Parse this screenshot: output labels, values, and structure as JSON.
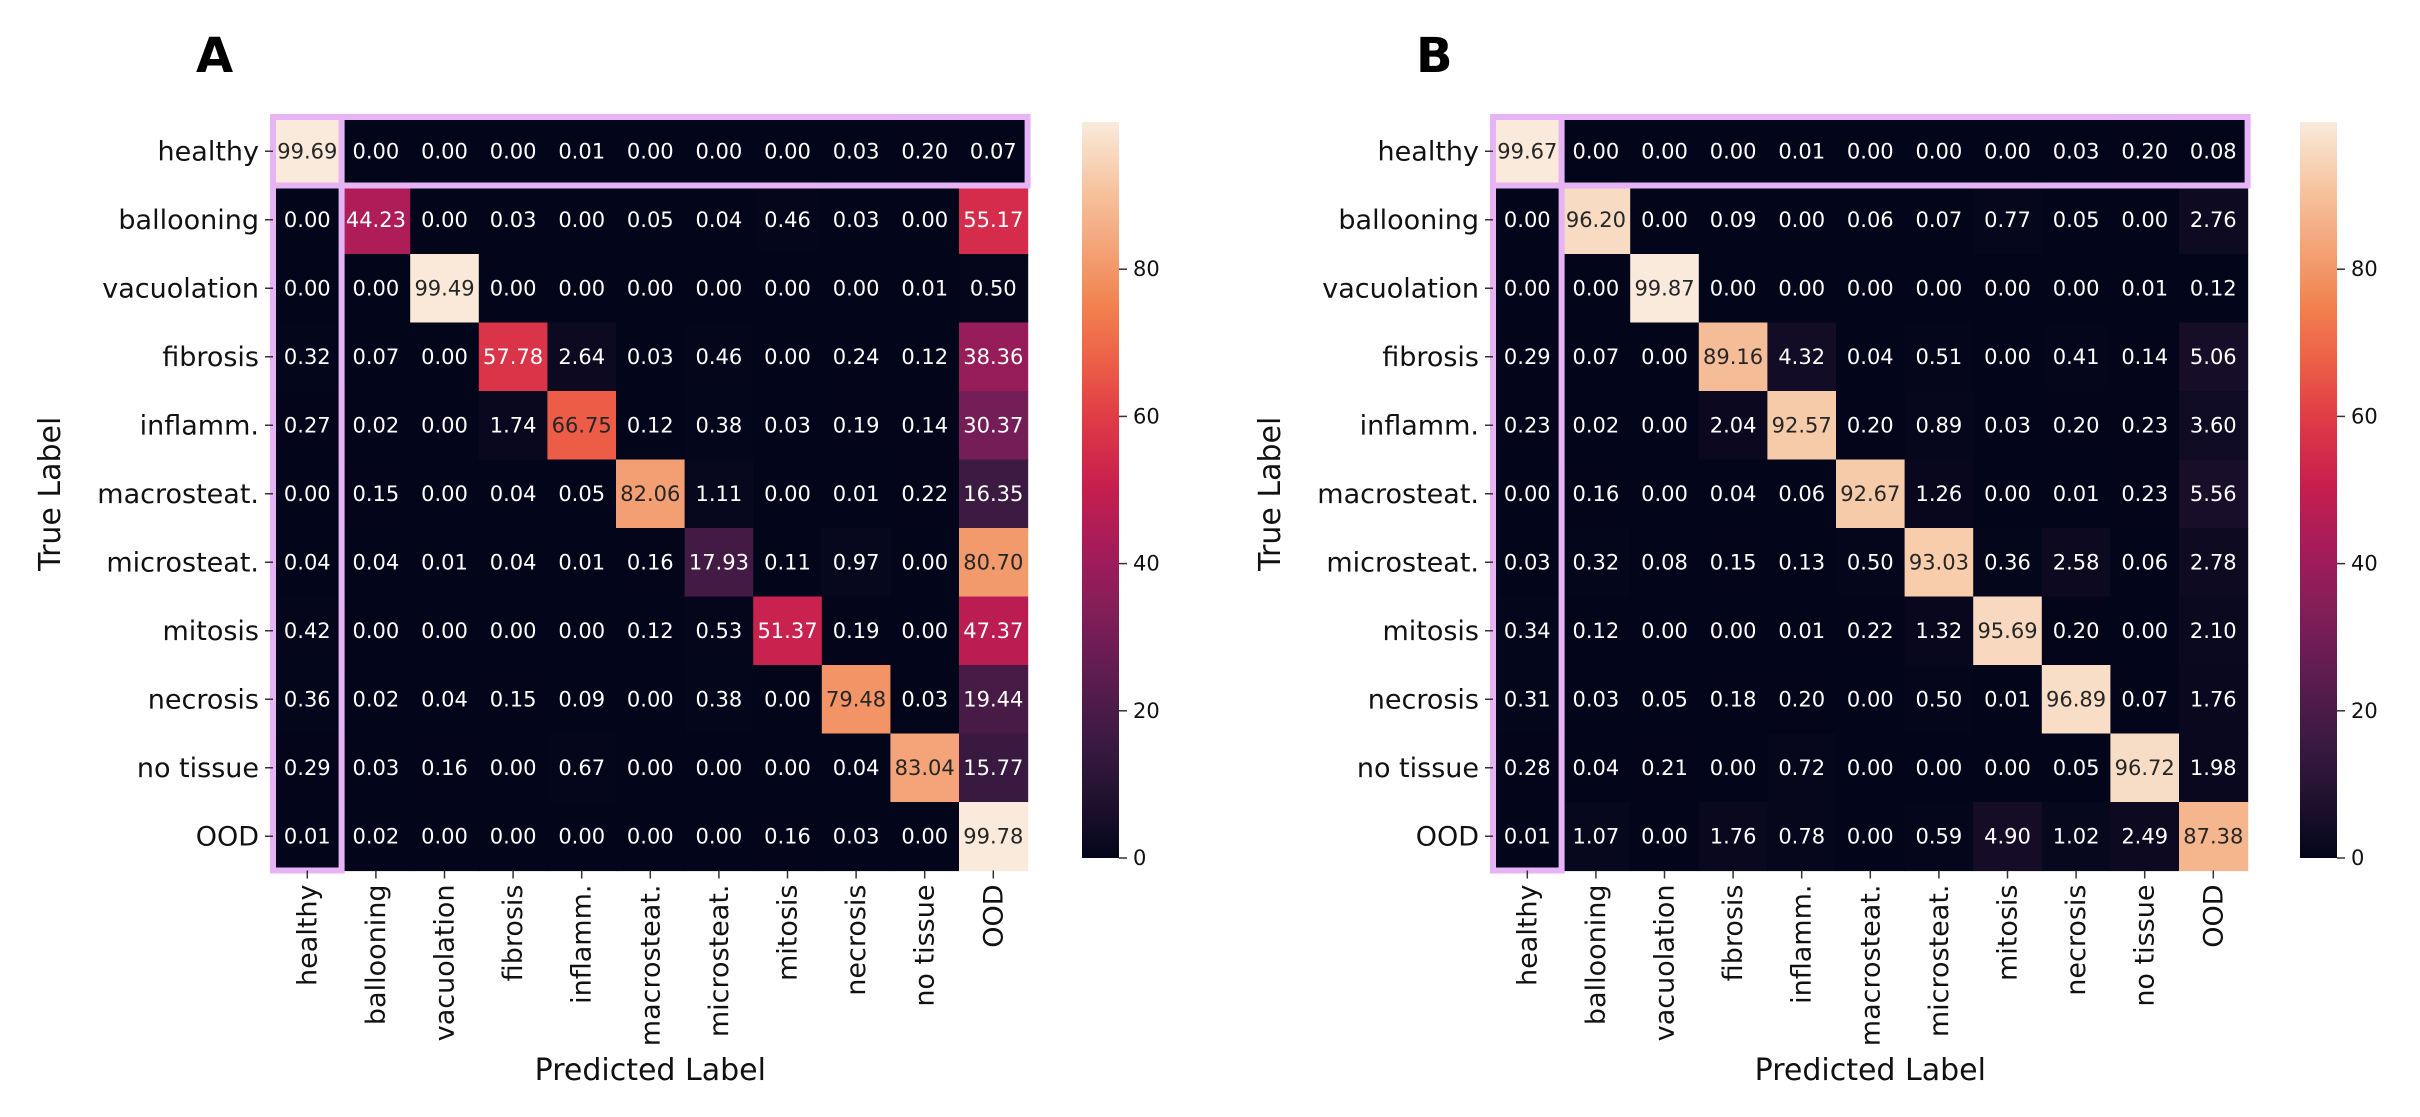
{
  "chart_data": [
    {
      "type": "heatmap",
      "panel_label": "A",
      "title": "",
      "xlabel": "Predicted Label",
      "ylabel": "True Label",
      "categories": [
        "healthy",
        "ballooning",
        "vacuolation",
        "fibrosis",
        "inflamm.",
        "macrosteat.",
        "microsteat.",
        "mitosis",
        "necrosis",
        "no tissue",
        "OOD"
      ],
      "values": [
        [
          "99.69",
          "0.00",
          "0.00",
          "0.00",
          "0.01",
          "0.00",
          "0.00",
          "0.00",
          "0.03",
          "0.20",
          "0.07"
        ],
        [
          "0.00",
          "44.23",
          "0.00",
          "0.03",
          "0.00",
          "0.05",
          "0.04",
          "0.46",
          "0.03",
          "0.00",
          "55.17"
        ],
        [
          "0.00",
          "0.00",
          "99.49",
          "0.00",
          "0.00",
          "0.00",
          "0.00",
          "0.00",
          "0.00",
          "0.01",
          "0.50"
        ],
        [
          "0.32",
          "0.07",
          "0.00",
          "57.78",
          "2.64",
          "0.03",
          "0.46",
          "0.00",
          "0.24",
          "0.12",
          "38.36"
        ],
        [
          "0.27",
          "0.02",
          "0.00",
          "1.74",
          "66.75",
          "0.12",
          "0.38",
          "0.03",
          "0.19",
          "0.14",
          "30.37"
        ],
        [
          "0.00",
          "0.15",
          "0.00",
          "0.04",
          "0.05",
          "82.06",
          "1.11",
          "0.00",
          "0.01",
          "0.22",
          "16.35"
        ],
        [
          "0.04",
          "0.04",
          "0.01",
          "0.04",
          "0.01",
          "0.16",
          "17.93",
          "0.11",
          "0.97",
          "0.00",
          "80.70"
        ],
        [
          "0.42",
          "0.00",
          "0.00",
          "0.00",
          "0.00",
          "0.12",
          "0.53",
          "51.37",
          "0.19",
          "0.00",
          "47.37"
        ],
        [
          "0.36",
          "0.02",
          "0.04",
          "0.15",
          "0.09",
          "0.00",
          "0.38",
          "0.00",
          "79.48",
          "0.03",
          "19.44"
        ],
        [
          "0.29",
          "0.03",
          "0.16",
          "0.00",
          "0.67",
          "0.00",
          "0.00",
          "0.00",
          "0.04",
          "83.04",
          "15.77"
        ],
        [
          "0.01",
          "0.02",
          "0.00",
          "0.00",
          "0.00",
          "0.00",
          "0.00",
          "0.16",
          "0.03",
          "0.00",
          "99.78"
        ]
      ],
      "colorbar": {
        "range": [
          0,
          100
        ],
        "ticks": [
          "0",
          "20",
          "40",
          "60",
          "80"
        ]
      }
    },
    {
      "type": "heatmap",
      "panel_label": "B",
      "title": "",
      "xlabel": "Predicted Label",
      "ylabel": "True Label",
      "categories": [
        "healthy",
        "ballooning",
        "vacuolation",
        "fibrosis",
        "inflamm.",
        "macrosteat.",
        "microsteat.",
        "mitosis",
        "necrosis",
        "no tissue",
        "OOD"
      ],
      "values": [
        [
          "99.67",
          "0.00",
          "0.00",
          "0.00",
          "0.01",
          "0.00",
          "0.00",
          "0.00",
          "0.03",
          "0.20",
          "0.08"
        ],
        [
          "0.00",
          "96.20",
          "0.00",
          "0.09",
          "0.00",
          "0.06",
          "0.07",
          "0.77",
          "0.05",
          "0.00",
          "2.76"
        ],
        [
          "0.00",
          "0.00",
          "99.87",
          "0.00",
          "0.00",
          "0.00",
          "0.00",
          "0.00",
          "0.00",
          "0.01",
          "0.12"
        ],
        [
          "0.29",
          "0.07",
          "0.00",
          "89.16",
          "4.32",
          "0.04",
          "0.51",
          "0.00",
          "0.41",
          "0.14",
          "5.06"
        ],
        [
          "0.23",
          "0.02",
          "0.00",
          "2.04",
          "92.57",
          "0.20",
          "0.89",
          "0.03",
          "0.20",
          "0.23",
          "3.60"
        ],
        [
          "0.00",
          "0.16",
          "0.00",
          "0.04",
          "0.06",
          "92.67",
          "1.26",
          "0.00",
          "0.01",
          "0.23",
          "5.56"
        ],
        [
          "0.03",
          "0.32",
          "0.08",
          "0.15",
          "0.13",
          "0.50",
          "93.03",
          "0.36",
          "2.58",
          "0.06",
          "2.78"
        ],
        [
          "0.34",
          "0.12",
          "0.00",
          "0.00",
          "0.01",
          "0.22",
          "1.32",
          "95.69",
          "0.20",
          "0.00",
          "2.10"
        ],
        [
          "0.31",
          "0.03",
          "0.05",
          "0.18",
          "0.20",
          "0.00",
          "0.50",
          "0.01",
          "96.89",
          "0.07",
          "1.76"
        ],
        [
          "0.28",
          "0.04",
          "0.21",
          "0.00",
          "0.72",
          "0.00",
          "0.00",
          "0.00",
          "0.05",
          "96.72",
          "1.98"
        ],
        [
          "0.01",
          "1.07",
          "0.00",
          "1.76",
          "0.78",
          "0.00",
          "0.59",
          "4.90",
          "1.02",
          "2.49",
          "87.38"
        ]
      ],
      "colorbar": {
        "range": [
          0,
          100
        ],
        "ticks": [
          "0",
          "20",
          "40",
          "60",
          "80"
        ]
      }
    }
  ],
  "colors": {
    "highlight_border": "#e6b3f5",
    "colormap": [
      "#03051a",
      "#221331",
      "#3d1a42",
      "#5f1c4f",
      "#811e5a",
      "#a41c5a",
      "#c51e4f",
      "#dd3547",
      "#ec5c46",
      "#f2814f",
      "#f4a57a",
      "#f6c7a3",
      "#faebdd"
    ]
  }
}
